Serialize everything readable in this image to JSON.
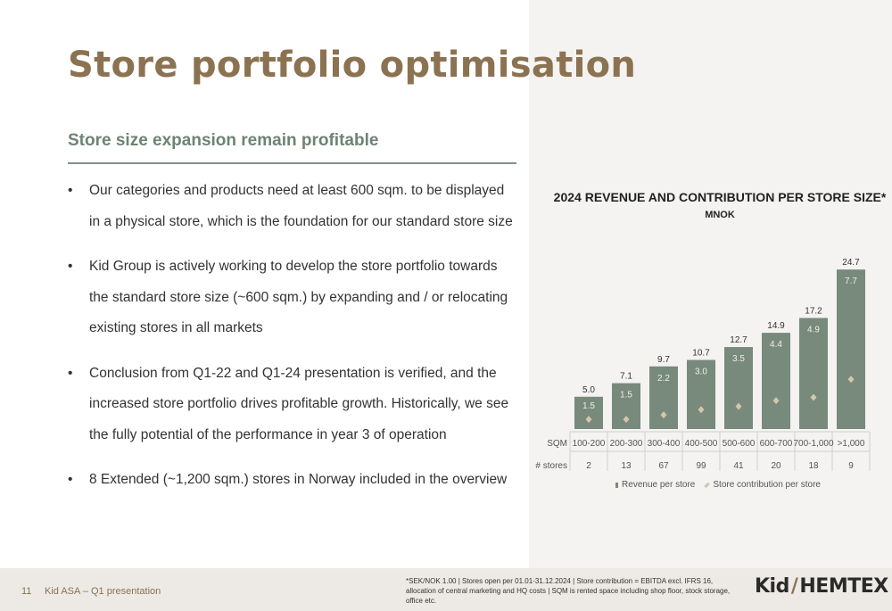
{
  "page": {
    "title": "Store portfolio optimisation",
    "subtitle": "Store size expansion remain profitable",
    "bullets": [
      "Our categories and products need at least 600 sqm. to be displayed in a physical store, which is the foundation for our standard store size",
      "Kid Group is actively working to develop the store portfolio towards the standard store size (~600 sqm.) by expanding and / or relocating existing stores in all markets",
      "Conclusion from Q1-22 and Q1-24 presentation is verified, and the increased store portfolio drives profitable growth. Historically, we see the fully potential of the performance in year 3 of operation",
      "8 Extended (~1,200 sqm.) stores in Norway included in the overview"
    ]
  },
  "chart_data": {
    "type": "bar",
    "title": "2024 REVENUE AND CONTRIBUTION PER STORE SIZE*",
    "subtitle": "MNOK",
    "row_labels": {
      "sqm": "SQM",
      "stores": "# stores"
    },
    "categories": [
      "100-200",
      "200-300",
      "300-400",
      "400-500",
      "500-600",
      "600-700",
      "700-1,000",
      ">1,000"
    ],
    "stores": [
      2,
      13,
      67,
      99,
      41,
      20,
      18,
      9
    ],
    "series": [
      {
        "name": "Revenue per store",
        "marker": "bar",
        "color": "#778a7b",
        "values": [
          5.0,
          7.1,
          9.7,
          10.7,
          12.7,
          14.9,
          17.2,
          24.7
        ]
      },
      {
        "name": "Store contribution per store",
        "marker": "diamond",
        "color": "#d4c6ab",
        "values": [
          1.5,
          1.5,
          2.2,
          3.0,
          3.5,
          4.4,
          4.9,
          7.7
        ]
      }
    ],
    "ylim": [
      0,
      25
    ]
  },
  "legend": {
    "revenue": "Revenue per store",
    "contribution": "Store contribution per store"
  },
  "footer": {
    "page_number": "11",
    "label": "Kid ASA – Q1 presentation",
    "footnote": "*SEK/NOK 1.00 | Stores open per 01.01-31.12.2024 | Store contribution = EBITDA excl. IFRS 16, allocation of central marketing and HQ costs | SQM is rented space including shop floor, stock storage, office etc.",
    "logo_left": "Kid",
    "logo_slash": "/",
    "logo_right": "HEMTEX"
  }
}
